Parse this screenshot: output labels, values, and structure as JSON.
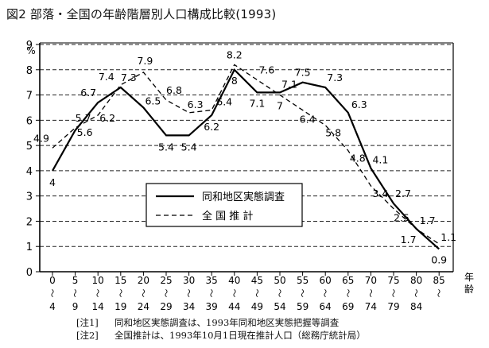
{
  "title": "図2 部落・全国の年齢階層別人口構成比較(1993)",
  "chart_data": {
    "type": "line",
    "title": "図2 部落・全国の年齢階層別人口構成比較(1993)",
    "ylabel": "%",
    "xlabel": "年齢",
    "ylim": [
      0,
      9
    ],
    "yticks": [
      "0",
      "1",
      "2",
      "3",
      "4",
      "5",
      "6",
      "7",
      "8",
      "9"
    ],
    "grid": "horizontal dashed",
    "legend_position": "center-right",
    "categories": [
      [
        "0",
        "〜",
        "4"
      ],
      [
        "5",
        "〜",
        "9"
      ],
      [
        "10",
        "〜",
        "14"
      ],
      [
        "15",
        "〜",
        "19"
      ],
      [
        "20",
        "〜",
        "24"
      ],
      [
        "25",
        "〜",
        "29"
      ],
      [
        "30",
        "〜",
        "34"
      ],
      [
        "35",
        "〜",
        "39"
      ],
      [
        "40",
        "〜",
        "44"
      ],
      [
        "45",
        "〜",
        "49"
      ],
      [
        "50",
        "〜",
        "54"
      ],
      [
        "55",
        "〜",
        "59"
      ],
      [
        "60",
        "〜",
        "64"
      ],
      [
        "65",
        "〜",
        "69"
      ],
      [
        "70",
        "〜",
        "74"
      ],
      [
        "75",
        "〜",
        "79"
      ],
      [
        "80",
        "〜",
        "84"
      ],
      [
        "85",
        "〜",
        ""
      ]
    ],
    "series": [
      {
        "name": "同和地区実態調査",
        "style": "solid",
        "values": [
          4,
          5.6,
          6.7,
          7.3,
          6.5,
          5.4,
          5.4,
          6.2,
          8,
          7.1,
          7.1,
          7.5,
          7.3,
          6.3,
          4.1,
          2.7,
          1.7,
          0.9
        ]
      },
      {
        "name": "全 国 推 計",
        "style": "dashed",
        "values": [
          4.9,
          5.7,
          6.2,
          7.4,
          7.9,
          6.8,
          6.3,
          6.4,
          8.2,
          7.6,
          7,
          6.4,
          5.8,
          4.8,
          3.4,
          2.5,
          1.7,
          1.1
        ]
      }
    ]
  },
  "notes": [
    {
      "tag": "[注1]",
      "text": "同和地区実態調査は、1993年同和地区実態把握等調査"
    },
    {
      "tag": "[注2]",
      "text": "全国推計は、1993年10月1日現在推計人口（総務庁統計局）"
    }
  ]
}
